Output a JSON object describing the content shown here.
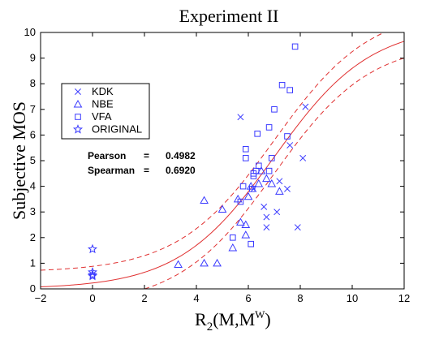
{
  "chart_data": {
    "type": "scatter",
    "title": "Experiment II",
    "xlabel_main": "R",
    "xlabel_sub": "2",
    "xlabel_rest": "(M,M",
    "xlabel_sup": "W",
    "xlabel_end": ")",
    "ylabel": "Subjective MOS",
    "xlim": [
      -2,
      12
    ],
    "ylim": [
      0,
      10
    ],
    "xticks": [
      -2,
      0,
      2,
      4,
      6,
      8,
      10,
      12
    ],
    "yticks": [
      0,
      1,
      2,
      3,
      4,
      5,
      6,
      7,
      8,
      9,
      10
    ],
    "grid": false,
    "legend_position": "upper-left",
    "annotations": {
      "pearson_label": "Pearson",
      "pearson_eq": "=",
      "pearson_value": "0.4982",
      "spearman_label": "Spearman",
      "spearman_eq": "=",
      "spearman_value": "0.6920"
    },
    "series": [
      {
        "name": "KDK",
        "marker": "x",
        "color": "#3a3aff",
        "points": [
          [
            5.7,
            6.7
          ],
          [
            6.2,
            3.9
          ],
          [
            6.6,
            3.2
          ],
          [
            6.7,
            2.8
          ],
          [
            6.7,
            2.4
          ],
          [
            7.1,
            3.0
          ],
          [
            7.2,
            4.2
          ],
          [
            7.5,
            3.9
          ],
          [
            7.6,
            5.6
          ],
          [
            7.9,
            2.4
          ],
          [
            8.1,
            5.1
          ],
          [
            8.2,
            7.1
          ]
        ]
      },
      {
        "name": "NBE",
        "marker": "triangle",
        "color": "#3a3aff",
        "points": [
          [
            3.3,
            0.95
          ],
          [
            4.3,
            1.0
          ],
          [
            4.8,
            1.0
          ],
          [
            4.3,
            3.45
          ],
          [
            5.0,
            3.1
          ],
          [
            5.4,
            1.6
          ],
          [
            5.6,
            3.5
          ],
          [
            5.7,
            2.6
          ],
          [
            5.9,
            2.5
          ],
          [
            5.9,
            2.1
          ],
          [
            6.0,
            3.6
          ],
          [
            6.1,
            4.0
          ],
          [
            6.4,
            4.1
          ],
          [
            6.5,
            4.6
          ],
          [
            6.7,
            4.3
          ],
          [
            6.9,
            4.1
          ],
          [
            7.2,
            3.8
          ]
        ]
      },
      {
        "name": "VFA",
        "marker": "square",
        "color": "#3a3aff",
        "points": [
          [
            5.4,
            2.0
          ],
          [
            5.7,
            3.4
          ],
          [
            5.8,
            4.0
          ],
          [
            5.9,
            5.1
          ],
          [
            5.9,
            5.45
          ],
          [
            6.1,
            1.75
          ],
          [
            6.15,
            3.9
          ],
          [
            6.2,
            4.4
          ],
          [
            6.3,
            4.6
          ],
          [
            6.4,
            4.8
          ],
          [
            6.35,
            6.05
          ],
          [
            6.8,
            6.3
          ],
          [
            6.9,
            5.1
          ],
          [
            7.0,
            7.0
          ],
          [
            7.3,
            7.95
          ],
          [
            7.6,
            7.75
          ],
          [
            7.8,
            9.45
          ],
          [
            7.5,
            5.95
          ],
          [
            6.8,
            4.6
          ],
          [
            6.2,
            4.5
          ]
        ]
      },
      {
        "name": "ORIGINAL",
        "marker": "star",
        "color": "#3a3aff",
        "points": [
          [
            0,
            1.55
          ],
          [
            0,
            0.65
          ],
          [
            0,
            0.55
          ],
          [
            0,
            0.5
          ]
        ]
      }
    ],
    "fit_curves": [
      {
        "name": "fit",
        "style": "solid",
        "color": "#e03030",
        "a": 10.3,
        "b": 7.0,
        "c": 1.85,
        "offset": 0
      },
      {
        "name": "upper-bound",
        "style": "dashed",
        "color": "#e03030",
        "a": 10.3,
        "b": 7.0,
        "c": 1.85,
        "offset": 0.65
      },
      {
        "name": "lower-bound",
        "style": "dashed",
        "color": "#e03030",
        "a": 10.3,
        "b": 7.0,
        "c": 1.85,
        "offset": -0.65
      }
    ]
  }
}
